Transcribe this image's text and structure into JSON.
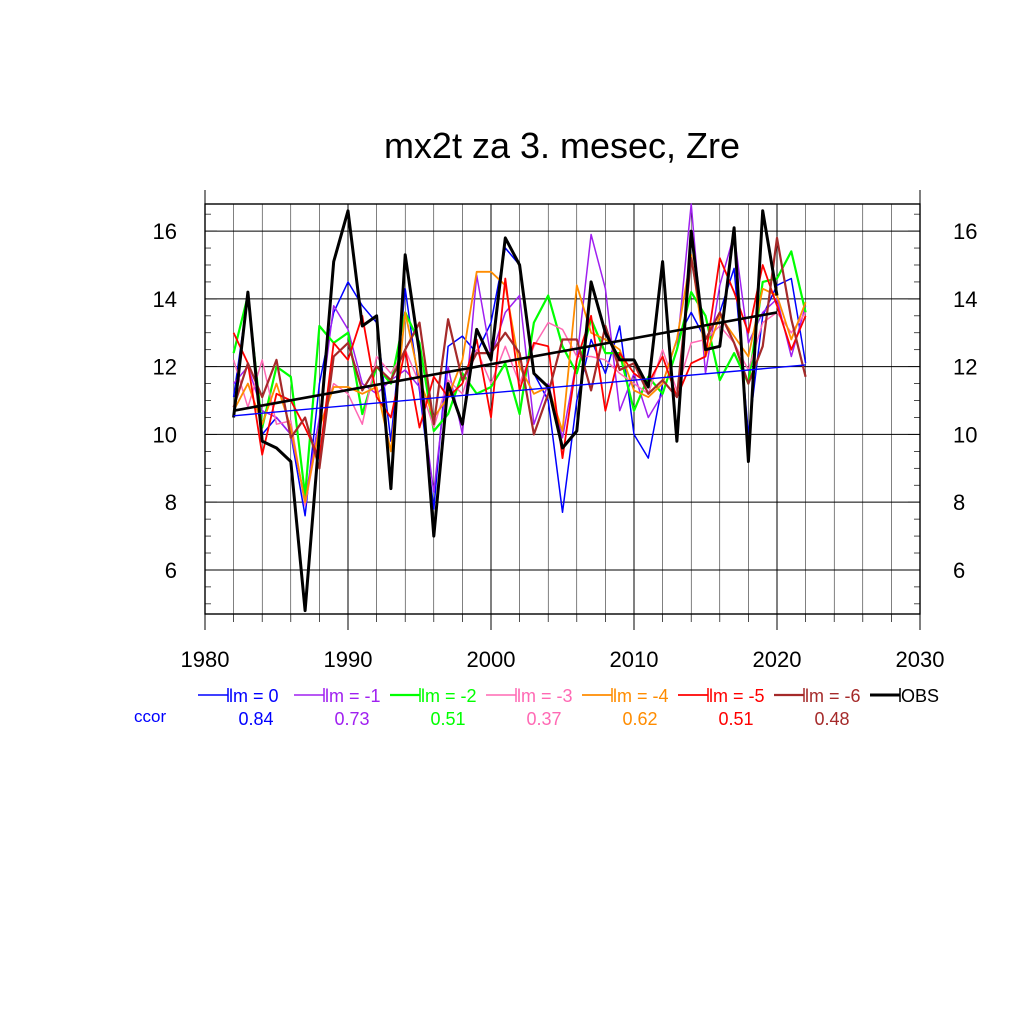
{
  "chart_data": {
    "type": "line",
    "title": "mx2t za 3. mesec, Zre",
    "xlabel": "",
    "ylabel": "",
    "xlim": [
      1980,
      2030
    ],
    "ylim": [
      4.7,
      16.8
    ],
    "xticks": [
      1980,
      1990,
      2000,
      2010,
      2020,
      2030
    ],
    "yticks": [
      6,
      8,
      10,
      12,
      14,
      16
    ],
    "grid": true,
    "legend_position": "bottom",
    "x": [
      1982,
      1983,
      1984,
      1985,
      1986,
      1987,
      1988,
      1989,
      1990,
      1991,
      1992,
      1993,
      1994,
      1995,
      1996,
      1997,
      1998,
      1999,
      2000,
      2001,
      2002,
      2003,
      2004,
      2005,
      2006,
      2007,
      2008,
      2009,
      2010,
      2011,
      2012,
      2013,
      2014,
      2015,
      2016,
      2017,
      2018,
      2019,
      2020,
      2021,
      2022
    ],
    "series": [
      {
        "name": "lm = 0",
        "color": "#0000ff",
        "width": 1.5,
        "ccor": "0.84",
        "values": [
          11.1,
          14.1,
          10.0,
          10.5,
          10.0,
          7.6,
          11.5,
          13.6,
          14.5,
          13.8,
          13.3,
          9.8,
          14.3,
          11.3,
          7.8,
          12.6,
          12.9,
          12.4,
          13.3,
          15.5,
          15.0,
          11.8,
          11.0,
          7.7,
          11.0,
          12.8,
          11.8,
          13.2,
          10.0,
          9.3,
          11.5,
          12.8,
          13.6,
          12.8,
          13.6,
          14.9,
          10.0,
          13.5,
          14.4,
          14.6,
          12.1
        ]
      },
      {
        "name": "lm = -1",
        "color": "#a020f0",
        "width": 1.5,
        "ccor": "0.73",
        "values": [
          11.5,
          12.0,
          10.7,
          10.5,
          10.0,
          8.1,
          10.5,
          13.8,
          13.1,
          11.5,
          11.2,
          11.6,
          11.9,
          11.4,
          8.3,
          12.0,
          10.0,
          14.7,
          12.3,
          13.6,
          14.1,
          10.3,
          11.5,
          9.9,
          12.2,
          15.9,
          14.3,
          10.7,
          11.8,
          10.5,
          11.2,
          12.5,
          16.8,
          11.8,
          14.4,
          15.9,
          12.7,
          13.6,
          14.0,
          12.3,
          13.8
        ]
      },
      {
        "name": "lm = -2",
        "color": "#00ff00",
        "width": 2.2,
        "ccor": "0.51",
        "values": [
          12.4,
          14.1,
          10.2,
          12.0,
          11.7,
          8.2,
          13.2,
          12.7,
          13.0,
          10.6,
          12.0,
          11.5,
          13.6,
          12.7,
          10.1,
          10.6,
          11.8,
          11.2,
          11.4,
          12.1,
          10.6,
          13.3,
          14.1,
          12.6,
          11.8,
          13.4,
          12.4,
          12.4,
          10.7,
          11.7,
          11.2,
          12.5,
          14.2,
          13.5,
          11.6,
          12.4,
          11.5,
          14.5,
          14.6,
          15.4,
          13.6
        ]
      },
      {
        "name": "lm = -3",
        "color": "#ff69b4",
        "width": 1.5,
        "ccor": "0.37",
        "values": [
          12.2,
          10.8,
          12.2,
          10.3,
          10.4,
          7.9,
          10.2,
          11.5,
          11.2,
          10.3,
          12.3,
          11.8,
          12.5,
          11.5,
          10.2,
          11.6,
          11.2,
          12.5,
          11.5,
          12.6,
          11.5,
          12.6,
          13.3,
          13.1,
          12.3,
          12.3,
          12.2,
          11.8,
          11.5,
          11.2,
          12.5,
          11.3,
          12.7,
          12.8,
          13.2,
          12.7,
          11.9,
          13.3,
          13.6,
          13.0,
          13.6
        ]
      },
      {
        "name": "lm = -4",
        "color": "#ff8c00",
        "width": 1.8,
        "ccor": "0.62",
        "values": [
          10.7,
          11.5,
          10.3,
          11.5,
          10.2,
          8.0,
          10.2,
          11.4,
          11.4,
          11.2,
          11.4,
          9.5,
          13.6,
          11.6,
          10.5,
          11.1,
          12.2,
          14.8,
          14.8,
          14.4,
          12.0,
          11.2,
          11.4,
          10.1,
          14.4,
          13.0,
          12.8,
          12.5,
          11.3,
          11.1,
          11.5,
          12.8,
          15.3,
          12.3,
          13.5,
          12.9,
          12.3,
          14.3,
          14.1,
          12.8,
          13.9
        ]
      },
      {
        "name": "lm = -5",
        "color": "#ff0000",
        "width": 1.8,
        "ccor": "0.51",
        "values": [
          13.0,
          12.1,
          9.4,
          11.2,
          11.0,
          10.2,
          9.3,
          12.7,
          12.2,
          13.5,
          11.1,
          10.5,
          12.5,
          10.2,
          11.7,
          11.1,
          11.5,
          12.8,
          10.5,
          14.6,
          11.3,
          12.7,
          12.6,
          9.3,
          12.2,
          13.5,
          10.7,
          12.4,
          11.8,
          11.5,
          12.3,
          11.1,
          12.1,
          12.3,
          15.2,
          14.2,
          13.0,
          15.0,
          13.8,
          12.5,
          13.5
        ]
      },
      {
        "name": "lm = -6",
        "color": "#a52a2a",
        "width": 2.2,
        "ccor": "0.48",
        "values": [
          10.8,
          12.1,
          11.1,
          12.2,
          9.9,
          10.5,
          9.0,
          12.3,
          12.7,
          11.3,
          12.0,
          11.6,
          12.5,
          13.3,
          10.3,
          13.4,
          11.6,
          12.4,
          12.4,
          13.0,
          12.4,
          10.0,
          11.2,
          12.8,
          12.8,
          11.3,
          13.2,
          11.9,
          12.1,
          11.2,
          11.6,
          11.1,
          15.2,
          12.8,
          13.6,
          12.7,
          11.5,
          12.6,
          15.8,
          13.4,
          11.7
        ]
      },
      {
        "name": "OBS",
        "color": "#000000",
        "width": 3.0,
        "ccor": "",
        "values": [
          10.5,
          14.2,
          9.8,
          9.6,
          9.2,
          4.8,
          10.0,
          15.1,
          16.6,
          13.2,
          13.5,
          8.4,
          15.3,
          12.4,
          7.0,
          11.5,
          10.3,
          13.1,
          12.2,
          15.8,
          15.0,
          11.8,
          11.4,
          9.6,
          10.1,
          14.5,
          13.0,
          12.2,
          12.2,
          11.4,
          15.1,
          9.8,
          16.0,
          12.5,
          12.6,
          16.1,
          9.2,
          16.6,
          14.1,
          null,
          null
        ]
      }
    ],
    "trend_lines": [
      {
        "color": "#0000ff",
        "width": 1.4,
        "x": [
          1982,
          2022
        ],
        "y": [
          10.55,
          12.05
        ]
      },
      {
        "color": "#000000",
        "width": 2.6,
        "x": [
          1982,
          2020
        ],
        "y": [
          10.7,
          13.6
        ]
      }
    ],
    "ccor_label": "ccor"
  }
}
